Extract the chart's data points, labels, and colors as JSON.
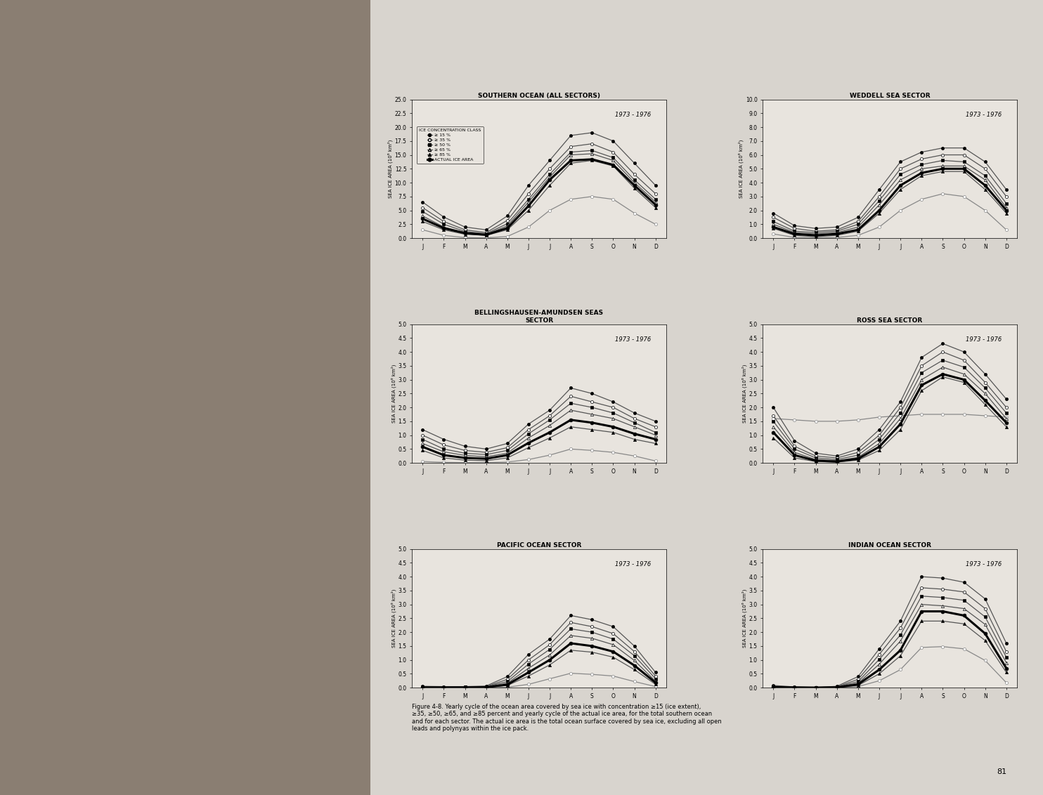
{
  "left_bg": "#8a7e72",
  "right_bg": "#d8d4ce",
  "chart_bg": "#e8e4de",
  "months": [
    "J",
    "F",
    "M",
    "A",
    "M",
    "J",
    "J",
    "A",
    "S",
    "O",
    "N",
    "D"
  ],
  "subtitle": "1973 - 1976",
  "panels": [
    {
      "title": "SOUTHERN OCEAN (ALL SECTORS)",
      "title2": null,
      "ylim": [
        0,
        25.0
      ],
      "yticks": [
        0.0,
        2.5,
        5.0,
        7.5,
        10.0,
        12.5,
        15.0,
        17.5,
        20.0,
        22.5,
        25.0
      ],
      "ylabel": "SEA ICE AREA (10⁶ km²)",
      "has_legend": true,
      "curves": {
        "c15": [
          6.5,
          3.8,
          2.0,
          1.5,
          4.0,
          9.5,
          14.0,
          18.5,
          19.0,
          17.5,
          13.5,
          9.5
        ],
        "c35": [
          5.5,
          3.0,
          1.5,
          1.0,
          3.2,
          8.0,
          12.5,
          16.5,
          17.0,
          15.5,
          11.5,
          8.0
        ],
        "c50": [
          4.8,
          2.5,
          1.2,
          0.8,
          2.6,
          7.0,
          11.5,
          15.5,
          15.8,
          14.5,
          10.5,
          7.0
        ],
        "c65": [
          4.0,
          2.0,
          1.0,
          0.7,
          2.2,
          6.5,
          11.0,
          15.0,
          15.2,
          14.0,
          10.0,
          6.5
        ],
        "c85": [
          3.0,
          1.5,
          0.7,
          0.5,
          1.5,
          5.0,
          9.5,
          13.5,
          14.0,
          13.0,
          9.0,
          5.5
        ],
        "actual": [
          3.5,
          1.8,
          0.9,
          0.6,
          1.8,
          5.8,
          10.5,
          14.0,
          14.2,
          13.2,
          9.5,
          6.0
        ],
        "c35_open": [
          1.5,
          0.5,
          0.1,
          0.05,
          0.3,
          2.0,
          5.0,
          7.0,
          7.5,
          7.0,
          4.5,
          2.5
        ]
      }
    },
    {
      "title": "WEDDELL SEA SECTOR",
      "title2": null,
      "ylim": [
        0,
        10.0
      ],
      "yticks": [
        0.0,
        1.0,
        2.0,
        3.0,
        4.0,
        5.0,
        6.0,
        7.0,
        8.0,
        9.0,
        10.0
      ],
      "ylabel": "SEA ICE AREA (10⁶ km²)",
      "has_legend": false,
      "curves": {
        "c15": [
          1.8,
          0.9,
          0.7,
          0.8,
          1.5,
          3.5,
          5.5,
          6.2,
          6.5,
          6.5,
          5.5,
          3.5
        ],
        "c35": [
          1.5,
          0.7,
          0.5,
          0.6,
          1.2,
          3.0,
          5.0,
          5.7,
          6.0,
          6.0,
          5.0,
          3.0
        ],
        "c50": [
          1.2,
          0.5,
          0.4,
          0.5,
          1.0,
          2.7,
          4.6,
          5.3,
          5.6,
          5.5,
          4.5,
          2.5
        ],
        "c65": [
          1.0,
          0.4,
          0.3,
          0.4,
          0.8,
          2.4,
          4.2,
          5.0,
          5.2,
          5.2,
          4.2,
          2.2
        ],
        "c85": [
          0.7,
          0.2,
          0.1,
          0.2,
          0.5,
          1.8,
          3.5,
          4.5,
          4.8,
          4.8,
          3.5,
          1.8
        ],
        "actual": [
          0.8,
          0.3,
          0.2,
          0.3,
          0.6,
          2.0,
          3.8,
          4.7,
          5.0,
          5.0,
          3.8,
          2.0
        ],
        "c35_open": [
          0.3,
          0.05,
          0.02,
          0.05,
          0.2,
          0.8,
          2.0,
          2.8,
          3.2,
          3.0,
          2.0,
          0.6
        ]
      }
    },
    {
      "title": "BELLINGSHAUSEN-AMUNDSEN SEAS",
      "title2": "SECTOR",
      "ylim": [
        0,
        5.0
      ],
      "yticks": [
        0.0,
        0.5,
        1.0,
        1.5,
        2.0,
        2.5,
        3.0,
        3.5,
        4.0,
        4.5,
        5.0
      ],
      "ylabel": "SEA ICE AREA (10⁶ km²)",
      "has_legend": false,
      "curves": {
        "c15": [
          1.2,
          0.85,
          0.6,
          0.5,
          0.7,
          1.4,
          1.9,
          2.7,
          2.5,
          2.2,
          1.8,
          1.5
        ],
        "c35": [
          1.0,
          0.65,
          0.45,
          0.38,
          0.55,
          1.2,
          1.7,
          2.4,
          2.2,
          2.0,
          1.6,
          1.3
        ],
        "c50": [
          0.85,
          0.5,
          0.35,
          0.3,
          0.45,
          1.05,
          1.55,
          2.15,
          2.0,
          1.8,
          1.45,
          1.1
        ],
        "c65": [
          0.7,
          0.4,
          0.27,
          0.22,
          0.35,
          0.9,
          1.35,
          1.9,
          1.75,
          1.6,
          1.3,
          1.0
        ],
        "actual": [
          0.58,
          0.28,
          0.18,
          0.15,
          0.28,
          0.72,
          1.1,
          1.55,
          1.45,
          1.3,
          1.05,
          0.85
        ],
        "c85": [
          0.45,
          0.18,
          0.1,
          0.08,
          0.18,
          0.55,
          0.9,
          1.3,
          1.2,
          1.1,
          0.85,
          0.7
        ],
        "c35_open": [
          0.05,
          0.02,
          0.01,
          0.01,
          0.03,
          0.12,
          0.28,
          0.5,
          0.45,
          0.38,
          0.25,
          0.07
        ]
      }
    },
    {
      "title": "ROSS SEA SECTOR",
      "title2": null,
      "ylim": [
        0,
        5.0
      ],
      "yticks": [
        0.0,
        0.5,
        1.0,
        1.5,
        2.0,
        2.5,
        3.0,
        3.5,
        4.0,
        4.5,
        5.0
      ],
      "ylabel": "SEA ICE AREA (10⁶ km²)",
      "has_legend": false,
      "curves": {
        "c15": [
          2.0,
          0.8,
          0.35,
          0.25,
          0.5,
          1.2,
          2.2,
          3.8,
          4.3,
          4.0,
          3.2,
          2.3
        ],
        "c35": [
          1.7,
          0.6,
          0.25,
          0.18,
          0.38,
          1.0,
          2.0,
          3.5,
          4.0,
          3.7,
          2.9,
          2.0
        ],
        "c50": [
          1.5,
          0.5,
          0.18,
          0.12,
          0.28,
          0.85,
          1.8,
          3.25,
          3.7,
          3.45,
          2.7,
          1.8
        ],
        "c65": [
          1.3,
          0.38,
          0.12,
          0.08,
          0.2,
          0.7,
          1.6,
          3.0,
          3.45,
          3.2,
          2.5,
          1.6
        ],
        "c85": [
          0.9,
          0.18,
          0.05,
          0.03,
          0.1,
          0.45,
          1.2,
          2.6,
          3.1,
          2.9,
          2.1,
          1.3
        ],
        "actual": [
          1.1,
          0.28,
          0.08,
          0.05,
          0.15,
          0.58,
          1.4,
          2.8,
          3.2,
          3.0,
          2.25,
          1.45
        ],
        "c35_open": [
          1.6,
          1.55,
          1.5,
          1.5,
          1.55,
          1.65,
          1.7,
          1.75,
          1.75,
          1.75,
          1.7,
          1.65
        ]
      }
    },
    {
      "title": "PACIFIC OCEAN SECTOR",
      "title2": null,
      "ylim": [
        0,
        5.0
      ],
      "yticks": [
        0.0,
        0.5,
        1.0,
        1.5,
        2.0,
        2.5,
        3.0,
        3.5,
        4.0,
        4.5,
        5.0
      ],
      "ylabel": "SEA ICE AREA (10⁶ km²)",
      "has_legend": false,
      "curves": {
        "c15": [
          0.05,
          0.04,
          0.04,
          0.06,
          0.4,
          1.2,
          1.75,
          2.6,
          2.45,
          2.2,
          1.5,
          0.55
        ],
        "c35": [
          0.03,
          0.02,
          0.03,
          0.04,
          0.3,
          1.0,
          1.55,
          2.35,
          2.2,
          1.95,
          1.3,
          0.42
        ],
        "c50": [
          0.02,
          0.015,
          0.02,
          0.03,
          0.22,
          0.85,
          1.38,
          2.12,
          2.0,
          1.75,
          1.15,
          0.32
        ],
        "c65": [
          0.015,
          0.01,
          0.015,
          0.02,
          0.16,
          0.7,
          1.18,
          1.88,
          1.78,
          1.55,
          0.98,
          0.23
        ],
        "c85": [
          0.008,
          0.005,
          0.008,
          0.01,
          0.08,
          0.42,
          0.82,
          1.35,
          1.28,
          1.1,
          0.65,
          0.12
        ],
        "actual": [
          0.01,
          0.008,
          0.01,
          0.015,
          0.11,
          0.55,
          1.0,
          1.6,
          1.5,
          1.3,
          0.8,
          0.18
        ],
        "c35_open": [
          0.001,
          0.001,
          0.001,
          0.001,
          0.015,
          0.12,
          0.32,
          0.52,
          0.48,
          0.42,
          0.22,
          0.04
        ]
      }
    },
    {
      "title": "INDIAN OCEAN SECTOR",
      "title2": null,
      "ylim": [
        0,
        5.0
      ],
      "yticks": [
        0.0,
        0.5,
        1.0,
        1.5,
        2.0,
        2.5,
        3.0,
        3.5,
        4.0,
        4.5,
        5.0
      ],
      "ylabel": "SEA ICE AREA (10⁶ km²)",
      "has_legend": false,
      "curves": {
        "c15": [
          0.08,
          0.03,
          0.01,
          0.05,
          0.4,
          1.4,
          2.4,
          4.0,
          3.95,
          3.8,
          3.2,
          1.6
        ],
        "c35": [
          0.06,
          0.02,
          0.008,
          0.03,
          0.3,
          1.2,
          2.15,
          3.6,
          3.55,
          3.45,
          2.85,
          1.3
        ],
        "c50": [
          0.04,
          0.015,
          0.005,
          0.022,
          0.22,
          1.02,
          1.9,
          3.3,
          3.25,
          3.15,
          2.55,
          1.1
        ],
        "c65": [
          0.03,
          0.01,
          0.003,
          0.015,
          0.16,
          0.85,
          1.68,
          3.0,
          2.95,
          2.85,
          2.28,
          0.9
        ],
        "c85": [
          0.015,
          0.005,
          0.002,
          0.008,
          0.08,
          0.5,
          1.15,
          2.4,
          2.4,
          2.3,
          1.7,
          0.55
        ],
        "actual": [
          0.02,
          0.008,
          0.003,
          0.012,
          0.12,
          0.65,
          1.35,
          2.75,
          2.75,
          2.6,
          1.95,
          0.7
        ],
        "c35_open": [
          0.001,
          0.0,
          0.0,
          0.0,
          0.04,
          0.25,
          0.65,
          1.45,
          1.48,
          1.4,
          0.98,
          0.18
        ]
      }
    }
  ],
  "figure_caption": "Figure 4-8. Yearly cycle of the ocean area covered by sea ice with concentration ≥15 (ice extent),\n≥35, ≥50, ≥65, and ≥85 percent and yearly cycle of the actual ice area, for the total southern ocean\nand for each sector. The actual ice area is the total ocean surface covered by sea ice, excluding all open\nleads and polynyas within the ice pack.",
  "page_number": "81"
}
